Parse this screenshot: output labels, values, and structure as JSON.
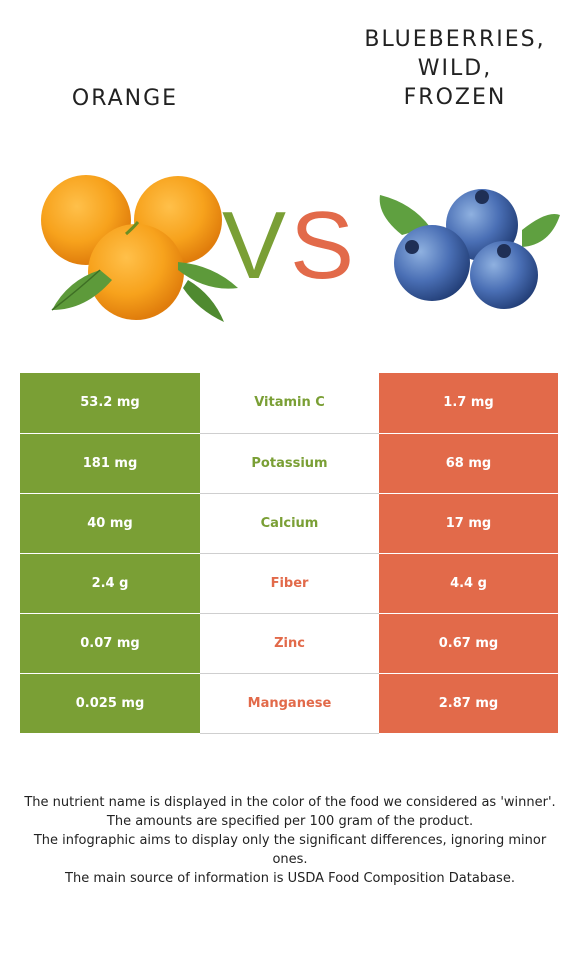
{
  "header": {
    "left_title": "ORANGE",
    "right_title": [
      "BLUEBERRIES,",
      "WILD,",
      "FROZEN"
    ],
    "vs_text": "VS"
  },
  "colors": {
    "left_winner": "#7a9f35",
    "right_winner": "#e26a4a"
  },
  "rows": [
    {
      "nutrient": "Vitamin C",
      "left": "53.2 mg",
      "right": "1.7 mg",
      "winner": "left"
    },
    {
      "nutrient": "Potassium",
      "left": "181 mg",
      "right": "68 mg",
      "winner": "left"
    },
    {
      "nutrient": "Calcium",
      "left": "40 mg",
      "right": "17 mg",
      "winner": "left"
    },
    {
      "nutrient": "Fiber",
      "left": "2.4 g",
      "right": "4.4 g",
      "winner": "right"
    },
    {
      "nutrient": "Zinc",
      "left": "0.07 mg",
      "right": "0.67 mg",
      "winner": "right"
    },
    {
      "nutrient": "Manganese",
      "left": "0.025 mg",
      "right": "2.87 mg",
      "winner": "right"
    }
  ],
  "notes": [
    "The nutrient name is displayed in the color of the food we considered as 'winner'.",
    "The amounts are specified per 100 gram of the product.",
    "The infographic aims to display only the significant differences, ignoring minor ones.",
    "The main source of information is USDA Food Composition Database."
  ]
}
